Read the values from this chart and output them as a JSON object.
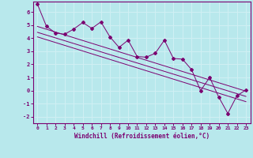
{
  "xlabel": "Windchill (Refroidissement éolien,°C)",
  "xlim": [
    -0.5,
    23.5
  ],
  "ylim": [
    -2.5,
    6.8
  ],
  "xticks": [
    0,
    1,
    2,
    3,
    4,
    5,
    6,
    7,
    8,
    9,
    10,
    11,
    12,
    13,
    14,
    15,
    16,
    17,
    18,
    19,
    20,
    21,
    22,
    23
  ],
  "yticks": [
    -2,
    -1,
    0,
    1,
    2,
    3,
    4,
    5,
    6
  ],
  "bg_color": "#b8e8ec",
  "line_color": "#7b0070",
  "grid_color": "#d0f0f4",
  "data_x": [
    0,
    1,
    2,
    3,
    4,
    5,
    6,
    7,
    8,
    9,
    10,
    11,
    12,
    13,
    14,
    15,
    16,
    17,
    18,
    19,
    20,
    21,
    22,
    23
  ],
  "data_y": [
    6.6,
    4.9,
    4.4,
    4.3,
    4.7,
    5.2,
    4.75,
    5.25,
    4.1,
    3.3,
    3.85,
    2.6,
    2.55,
    2.85,
    3.85,
    2.45,
    2.4,
    1.6,
    0.0,
    1.0,
    -0.5,
    -1.75,
    -0.4,
    0.05
  ],
  "line2_x": [
    0,
    23
  ],
  "line2_y": [
    4.9,
    -0.05
  ],
  "line3_x": [
    0,
    23
  ],
  "line3_y": [
    4.45,
    -0.45
  ],
  "line4_x": [
    0,
    23
  ],
  "line4_y": [
    4.1,
    -0.85
  ]
}
